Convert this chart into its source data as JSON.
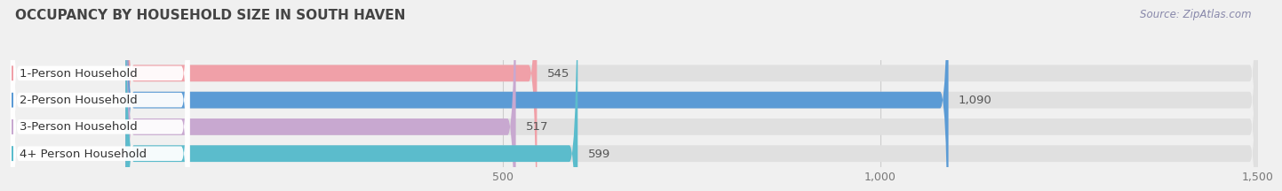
{
  "title": "OCCUPANCY BY HOUSEHOLD SIZE IN SOUTH HAVEN",
  "source": "Source: ZipAtlas.com",
  "categories": [
    "1-Person Household",
    "2-Person Household",
    "3-Person Household",
    "4+ Person Household"
  ],
  "values": [
    545,
    1090,
    517,
    599
  ],
  "bar_colors": [
    "#f0a0a8",
    "#5b9bd5",
    "#c8a8d0",
    "#5bbccc"
  ],
  "background_color": "#f0f0f0",
  "bar_bg_color": "#e0e0e0",
  "xlim_start": 0,
  "xlim_end": 1640,
  "data_xstart": 140,
  "data_xend": 1500,
  "xticks": [
    500,
    1000,
    1500
  ],
  "value_label_color": "#555555",
  "title_color": "#444444",
  "title_fontsize": 11,
  "source_color": "#8888aa",
  "bar_height": 0.62,
  "label_fontsize": 9.5,
  "value_fontsize": 9.5
}
